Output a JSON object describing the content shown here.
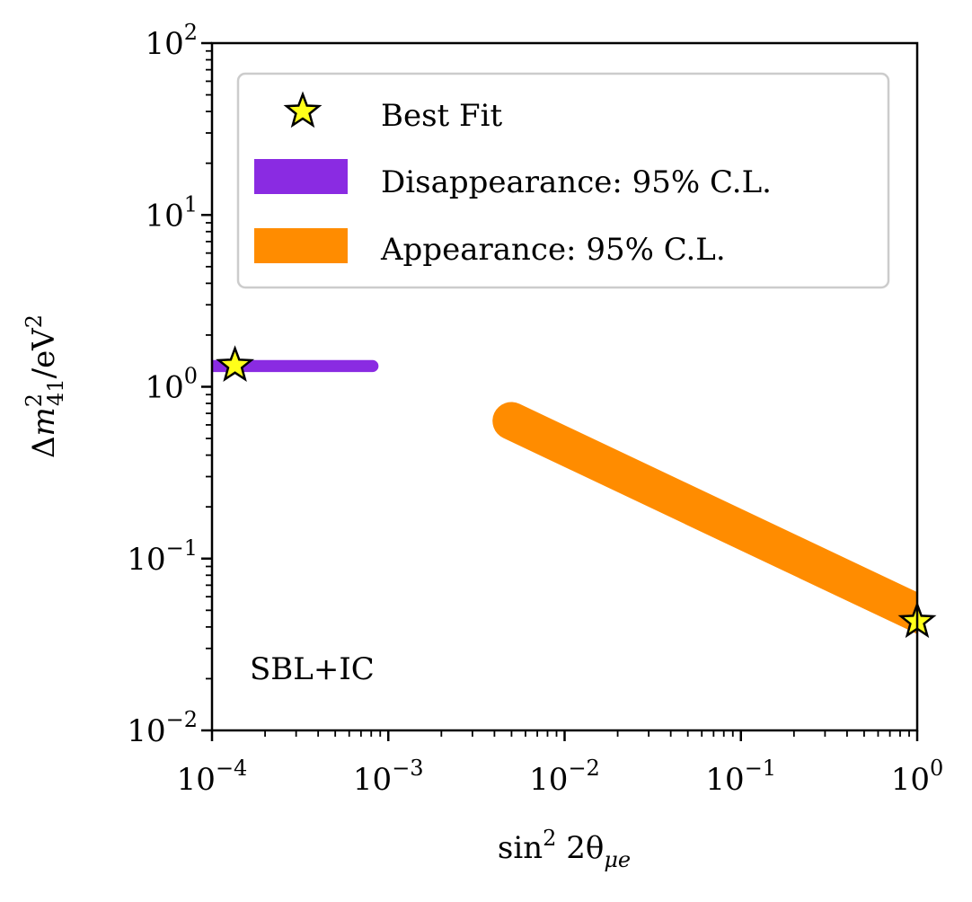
{
  "chart_data": {
    "type": "scatter",
    "xscale": "log",
    "yscale": "log",
    "xlim": [
      0.0001,
      1
    ],
    "ylim": [
      0.01,
      100
    ],
    "xlabel": "sin² 2θμe",
    "ylabel": "Δm²₄₁/eV²",
    "x_ticks": [
      {
        "value": 0.0001,
        "base": "10",
        "exp": "−4"
      },
      {
        "value": 0.001,
        "base": "10",
        "exp": "−3"
      },
      {
        "value": 0.01,
        "base": "10",
        "exp": "−2"
      },
      {
        "value": 0.1,
        "base": "10",
        "exp": "−1"
      },
      {
        "value": 1,
        "base": "10",
        "exp": "0"
      }
    ],
    "y_ticks": [
      {
        "value": 0.01,
        "base": "10",
        "exp": "−2"
      },
      {
        "value": 0.1,
        "base": "10",
        "exp": "−1"
      },
      {
        "value": 1,
        "base": "10",
        "exp": "0"
      },
      {
        "value": 10,
        "base": "10",
        "exp": "1"
      },
      {
        "value": 100,
        "base": "10",
        "exp": "2"
      }
    ],
    "annotation": "SBL+IC",
    "legend_position": "top-right",
    "series": [
      {
        "name": "Best Fit",
        "kind": "marker",
        "marker": "star",
        "color": "#ffff1a",
        "edge_color": "#000000",
        "points": [
          {
            "x": 0.000135,
            "y": 1.33
          },
          {
            "x": 1.0,
            "y": 0.043
          }
        ]
      },
      {
        "name": "Disappearance: 95% C.L.",
        "kind": "region",
        "color": "#8a2be2",
        "band": {
          "x_start": 0.0001,
          "x_end": 0.00088,
          "y_center": 1.32,
          "y_half_log": 0.035
        }
      },
      {
        "name": "Appearance: 95% C.L.",
        "kind": "region",
        "color": "#ff8c00",
        "band": {
          "x_start": 0.0039,
          "y_start": 0.68,
          "x_end": 1.0,
          "y_end": 0.043,
          "y_half_log": 0.11
        }
      }
    ]
  }
}
